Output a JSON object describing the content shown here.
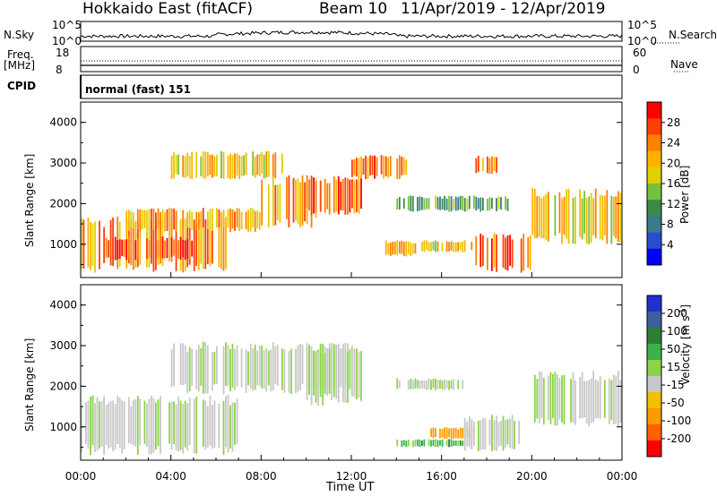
{
  "header": {
    "station": "Hokkaido East (fitACF)",
    "beam": "Beam 10",
    "dates": "11/Apr/2019 - 12/Apr/2019"
  },
  "side_labels": {
    "nsky": "N.Sky",
    "freq": "Freq.",
    "mhz": "[MHz]",
    "cpid": "CPID",
    "nsearch": "N.Search",
    "nave": "Nave"
  },
  "log_ticks": {
    "top": "10^5",
    "bottom": "10^0"
  },
  "freq_ticks": [
    "18",
    "8"
  ],
  "nave_ticks": [
    "60",
    "0"
  ],
  "cpid_text": "normal (fast) 151",
  "axes": {
    "ylabel": "Slant Range [km]",
    "xlabel": "Time UT",
    "y_ticks": [
      "4000",
      "3000",
      "2000",
      "1000"
    ],
    "x_ticks": [
      "00:00",
      "04:00",
      "08:00",
      "12:00",
      "16:00",
      "20:00",
      "00:00"
    ]
  },
  "power_bar": {
    "label": "Power [dB]",
    "ticks": [
      "28",
      "24",
      "20",
      "16",
      "12",
      "8",
      "4"
    ],
    "colors": [
      "#ff0000",
      "#ff4000",
      "#ff8000",
      "#ffb300",
      "#e0d000",
      "#74c13c",
      "#3a8a4a",
      "#3a7a8a",
      "#2c4ccf",
      "#0000ff"
    ]
  },
  "velocity_bar": {
    "label": "Velocity [m s^-1]",
    "ticks": [
      "200",
      "100",
      "50",
      "15",
      "-15",
      "-50",
      "-100",
      "-200"
    ],
    "colors": [
      "#2030d0",
      "#3a60a0",
      "#2e7d32",
      "#3cb34a",
      "#8bd448",
      "#c8c8c8",
      "#f0c000",
      "#ff9a00",
      "#ff6000",
      "#ff0000"
    ]
  },
  "chart_data": {
    "type": "heatmap",
    "x_range_hours": [
      0,
      24
    ],
    "y_range_km": [
      180,
      4500
    ],
    "noise_sky_log_range": [
      0,
      5
    ],
    "freq_mhz": 11,
    "nave": 20,
    "power_regions": [
      {
        "t0": 0.0,
        "t1": 6.5,
        "r0": 300,
        "r1": 1700,
        "db": 22
      },
      {
        "t0": 1.0,
        "t1": 5.0,
        "r0": 600,
        "r1": 1200,
        "db": 26
      },
      {
        "t0": 2.0,
        "t1": 8.0,
        "r0": 1300,
        "r1": 1900,
        "db": 20
      },
      {
        "t0": 4.0,
        "t1": 9.0,
        "r0": 2600,
        "r1": 3300,
        "db": 18
      },
      {
        "t0": 8.0,
        "t1": 10.5,
        "r0": 1400,
        "r1": 2700,
        "db": 20
      },
      {
        "t0": 10.0,
        "t1": 12.5,
        "r0": 1700,
        "r1": 2700,
        "db": 24
      },
      {
        "t0": 12.0,
        "t1": 14.5,
        "r0": 2600,
        "r1": 3200,
        "db": 24
      },
      {
        "t0": 13.5,
        "t1": 15.0,
        "r0": 700,
        "r1": 1100,
        "db": 20
      },
      {
        "t0": 15.0,
        "t1": 17.5,
        "r0": 800,
        "r1": 1100,
        "db": 18
      },
      {
        "t0": 17.5,
        "t1": 20.0,
        "r0": 300,
        "r1": 1300,
        "db": 24
      },
      {
        "t0": 14.0,
        "t1": 19.0,
        "r0": 1800,
        "r1": 2200,
        "db": 12
      },
      {
        "t0": 20.0,
        "t1": 24.0,
        "r0": 1000,
        "r1": 2400,
        "db": 18
      },
      {
        "t0": 17.5,
        "t1": 18.5,
        "r0": 2700,
        "r1": 3200,
        "db": 22
      }
    ],
    "velocity_regions": [
      {
        "t0": 0.0,
        "t1": 7.0,
        "r0": 300,
        "r1": 1800,
        "v": 0
      },
      {
        "t0": 4.0,
        "t1": 12.0,
        "r0": 1800,
        "r1": 3100,
        "v": 0
      },
      {
        "t0": 10.0,
        "t1": 12.5,
        "r0": 1500,
        "r1": 3100,
        "v": 0
      },
      {
        "t0": 15.5,
        "t1": 17.5,
        "r0": 700,
        "r1": 1000,
        "v": -60
      },
      {
        "t0": 14.0,
        "t1": 17.0,
        "r0": 500,
        "r1": 700,
        "v": 20
      },
      {
        "t0": 17.0,
        "t1": 19.5,
        "r0": 400,
        "r1": 1300,
        "v": 0
      },
      {
        "t0": 20.0,
        "t1": 24.0,
        "r0": 1000,
        "r1": 2400,
        "v": 0
      },
      {
        "t0": 14.0,
        "t1": 17.0,
        "r0": 1900,
        "r1": 2200,
        "v": 0
      }
    ]
  }
}
